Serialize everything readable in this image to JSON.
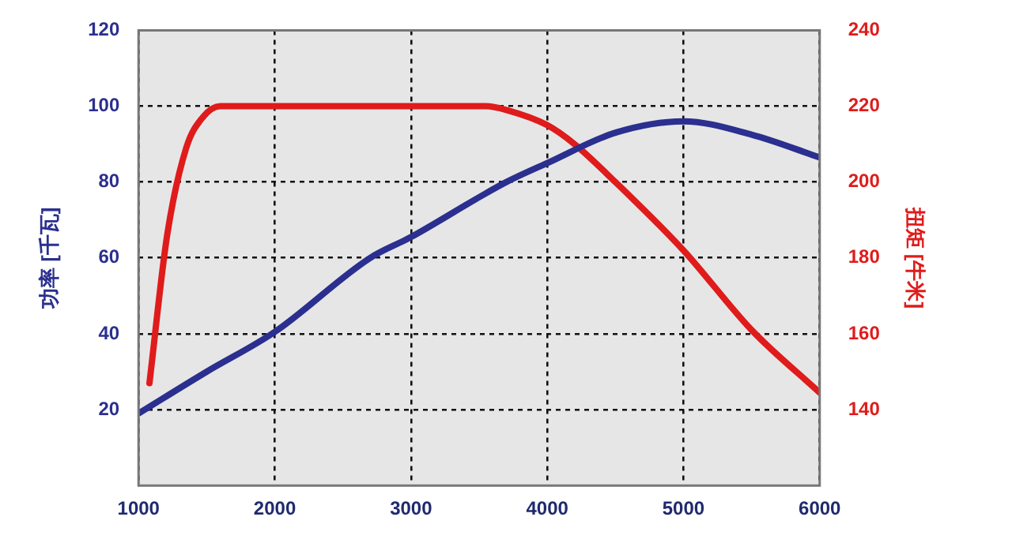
{
  "chart_data": {
    "type": "line",
    "ylabel": "功率 [千瓦]",
    "y2label": "扭矩 [牛米]",
    "xlim": [
      1000,
      6000
    ],
    "xticks": [
      1000,
      2000,
      3000,
      4000,
      5000,
      6000
    ],
    "ylim": [
      0,
      120
    ],
    "yticks": [
      20,
      40,
      60,
      80,
      100,
      120
    ],
    "y2lim": [
      120,
      240
    ],
    "y2ticks": [
      140,
      160,
      180,
      200,
      220,
      240
    ],
    "grid": true,
    "line_style": "solid",
    "marker": "none",
    "series": [
      {
        "color": "#2b2f8f",
        "x": [
          1000,
          1500,
          2000,
          2700,
          3000,
          3500,
          3700,
          4000,
          4500,
          5000,
          5500,
          6000
        ],
        "values": [
          19,
          30,
          40.5,
          60,
          65.5,
          76,
          80,
          85,
          93,
          96,
          92.5,
          86.5
        ]
      },
      {
        "color": "#e01b1b",
        "axis": "y2",
        "x": [
          1080,
          1210,
          1350,
          1470,
          1600,
          2000,
          3000,
          3550,
          3700,
          4000,
          4200,
          4500,
          5000,
          5500,
          6000
        ],
        "values": [
          147,
          186,
          209,
          217,
          220,
          220,
          220,
          220,
          219,
          215,
          210,
          200,
          182,
          161,
          144.5
        ]
      }
    ]
  }
}
